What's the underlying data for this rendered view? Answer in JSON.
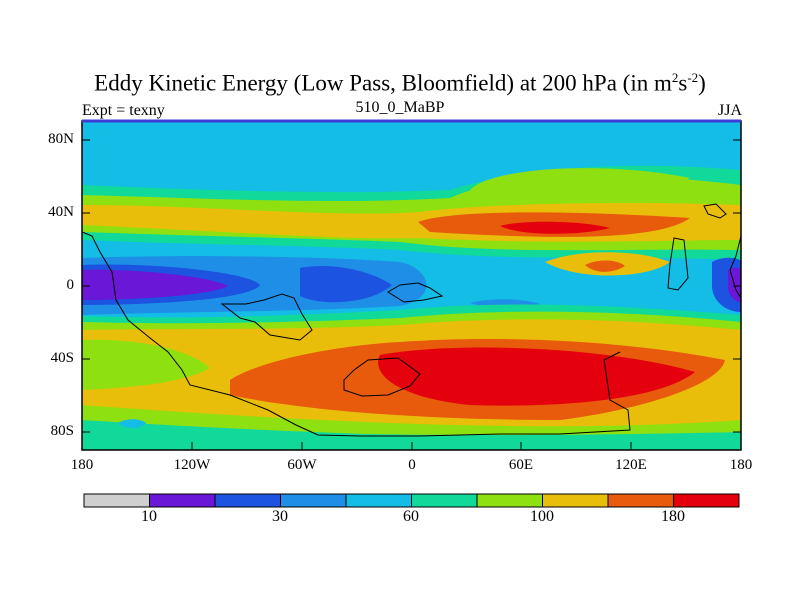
{
  "title": {
    "main": "Eddy Kinetic Energy (Low Pass, Bloomfield) at 200 hPa (in m",
    "sup1": "2",
    "mid": "s",
    "sup2": "-2",
    "end": ")"
  },
  "subtitle": {
    "left": "Expt = texny",
    "center": "510_0_MaBP",
    "right": "JJA"
  },
  "axes": {
    "y_ticks": [
      "80N",
      "40N",
      "0",
      "40S",
      "80S"
    ],
    "x_ticks": [
      "180",
      "120W",
      "60W",
      "0",
      "60E",
      "120E",
      "180"
    ]
  },
  "colorbar": {
    "colors": [
      "#cfcfcf",
      "#6a17d8",
      "#1c53e0",
      "#1e8ee6",
      "#14bde6",
      "#10d99a",
      "#8fe010",
      "#e8be0a",
      "#e85a0c",
      "#e4000c"
    ],
    "labels": [
      "10",
      "30",
      "60",
      "100",
      "180"
    ]
  },
  "palette": {
    "background": "#14bde6",
    "cyan_light": "#14bde6",
    "green_teal": "#10d99a",
    "yellow_green": "#8fe010",
    "yellow": "#e8be0a",
    "orange": "#e85a0c",
    "red": "#e4000c",
    "blue_mid": "#1e8ee6",
    "blue_dark": "#1c53e0",
    "purple": "#6a17d8"
  }
}
